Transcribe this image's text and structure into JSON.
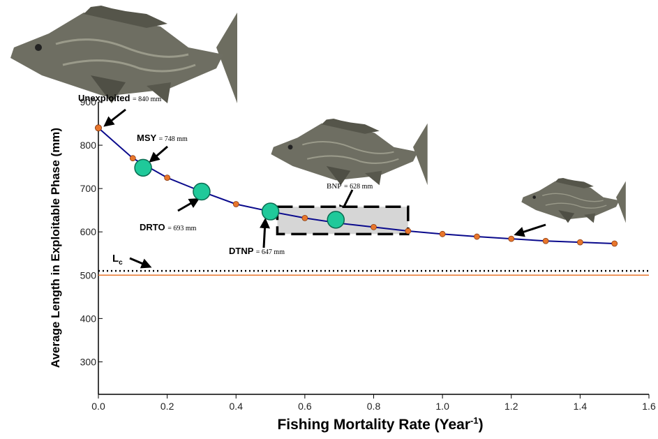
{
  "chart_data": {
    "type": "line",
    "ylabel": "Average Length in Exploitable Phase (mm)",
    "xlabel": "Fishing Mortality Rate (Year",
    "xlabel_sup": "-1",
    "xlabel_end": ")",
    "xlim": [
      0,
      1.6
    ],
    "xticks": [
      {
        "value": 0,
        "label": "0.0"
      },
      0.2,
      0.4,
      0.6,
      0.8,
      {
        "value": 1,
        "label": "1.0"
      },
      1.2,
      1.4,
      1.6
    ],
    "ylim": [
      225,
      900
    ],
    "yticks": [
      300,
      400,
      500,
      600,
      700,
      800,
      900
    ],
    "series": [
      {
        "color": "#0a0a8c",
        "point_color": "#e8762c",
        "x": [
          0,
          0.1,
          0.2,
          0.3,
          0.4,
          0.5,
          0.6,
          0.7,
          0.8,
          0.9,
          1.0,
          1.1,
          1.2,
          1.3,
          1.4,
          1.5
        ],
        "values": [
          840,
          770,
          725,
          693,
          664,
          647,
          632,
          620,
          611,
          602,
          595,
          589,
          584,
          579,
          576,
          573
        ]
      }
    ],
    "unexploited": {
      "name": "Unexploited",
      "label": "= 840 mm",
      "x": 0,
      "value": 840
    },
    "key_points": {
      "color": "#1fc99a",
      "points": [
        {
          "name": "MSY",
          "label": "= 748 mm",
          "x": 0.13,
          "value": 748
        },
        {
          "name": "DRTO",
          "label": "= 693 mm",
          "x": 0.3,
          "value": 693
        },
        {
          "name": "DTNP",
          "label": "= 647 mm",
          "x": 0.5,
          "value": 647
        },
        {
          "name": "BNP",
          "label": "= 628 mm",
          "x": 0.69,
          "value": 628
        }
      ]
    },
    "lc": {
      "name": "L",
      "sub": "c",
      "value": 510
    },
    "orange_line": {
      "value": 500,
      "color": "#e8762c"
    },
    "bnp_range": {
      "x": [
        0.52,
        0.9
      ],
      "y": [
        595,
        658
      ]
    }
  }
}
